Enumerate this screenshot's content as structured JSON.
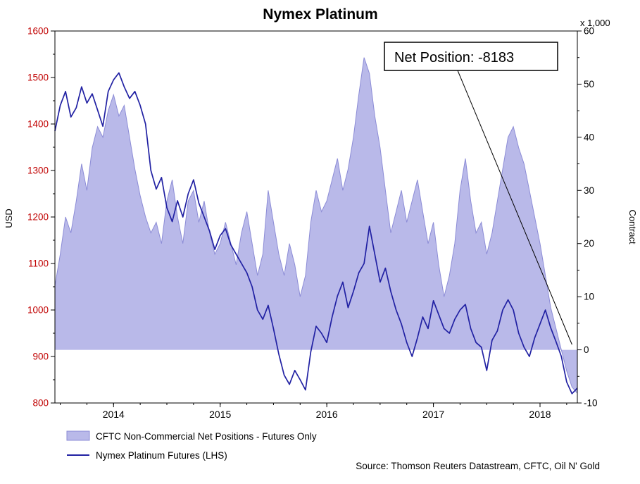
{
  "chart_data": {
    "type": "area",
    "title": "Nymex Platinum",
    "ylabel_left": "USD",
    "ylabel_right": "Contract",
    "right_axis_unit": "x 1,000",
    "x_start": 2013.45,
    "x_step": 0.05,
    "x_ticks": [
      2014,
      2015,
      2016,
      2017,
      2018
    ],
    "left_axis": {
      "min": 800,
      "max": 1600,
      "tick_step": 100,
      "label_color": "#c00000"
    },
    "right_axis": {
      "min": -10,
      "max": 60,
      "tick_step": 10,
      "label_color": "#000000"
    },
    "series": [
      {
        "name": "CFTC Non-Commercial Net Positions - Futures Only",
        "type": "area",
        "axis": "right",
        "color_fill": "#b9b9e9",
        "color_stroke": "#8c8cd6",
        "values": [
          12,
          18,
          25,
          22,
          28,
          35,
          30,
          38,
          42,
          40,
          45,
          48,
          44,
          46,
          40,
          34,
          29,
          25,
          22,
          24,
          20,
          28,
          32,
          25,
          20,
          28,
          30,
          24,
          28,
          22,
          18,
          20,
          24,
          20,
          16,
          22,
          26,
          20,
          14,
          18,
          30,
          24,
          18,
          14,
          20,
          16,
          10,
          14,
          24,
          30,
          26,
          28,
          32,
          36,
          30,
          34,
          40,
          48,
          55,
          52,
          44,
          38,
          30,
          22,
          26,
          30,
          24,
          28,
          32,
          26,
          20,
          24,
          16,
          10,
          14,
          20,
          30,
          36,
          28,
          22,
          24,
          18,
          22,
          28,
          34,
          40,
          42,
          38,
          35,
          30,
          25,
          20,
          14,
          8,
          4,
          0,
          -4,
          -7,
          -8.183
        ]
      },
      {
        "name": "Nymex Platinum Futures (LHS)",
        "type": "line",
        "axis": "left",
        "color": "#2121a3",
        "values": [
          1385,
          1440,
          1470,
          1415,
          1435,
          1480,
          1445,
          1465,
          1430,
          1395,
          1470,
          1495,
          1510,
          1480,
          1455,
          1470,
          1440,
          1400,
          1300,
          1260,
          1285,
          1220,
          1190,
          1235,
          1200,
          1250,
          1280,
          1230,
          1200,
          1170,
          1130,
          1160,
          1175,
          1140,
          1120,
          1100,
          1080,
          1050,
          1000,
          980,
          1010,
          960,
          905,
          860,
          840,
          870,
          850,
          828,
          910,
          965,
          950,
          930,
          985,
          1030,
          1060,
          1005,
          1040,
          1080,
          1100,
          1180,
          1120,
          1060,
          1090,
          1040,
          1000,
          970,
          930,
          900,
          940,
          985,
          960,
          1020,
          990,
          960,
          950,
          980,
          1000,
          1012,
          960,
          930,
          920,
          870,
          935,
          955,
          1000,
          1022,
          1000,
          950,
          920,
          900,
          940,
          970,
          1000,
          962,
          932,
          900,
          845,
          820,
          832
        ]
      }
    ],
    "annotation": {
      "text": "Net Position: -8183",
      "target_x": 2018.3,
      "target_value": 1
    },
    "legend": [
      {
        "label": "CFTC Non-Commercial Net Positions - Futures Only"
      },
      {
        "label": "Nymex Platinum Futures (LHS)"
      }
    ],
    "source": "Source: Thomson Reuters Datastream, CFTC, Oil N' Gold"
  }
}
